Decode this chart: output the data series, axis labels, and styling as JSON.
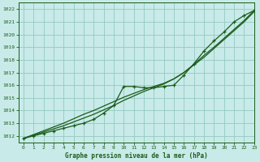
{
  "title": "Graphe pression niveau de la mer (hPa)",
  "xlabel": "Graphe pression niveau de la mer (hPa)",
  "xlim": [
    -0.5,
    23
  ],
  "ylim": [
    1011.5,
    1022.5
  ],
  "yticks": [
    1012,
    1013,
    1014,
    1015,
    1016,
    1017,
    1018,
    1019,
    1020,
    1021,
    1022
  ],
  "xticks": [
    0,
    1,
    2,
    3,
    4,
    5,
    6,
    7,
    8,
    9,
    10,
    11,
    12,
    13,
    14,
    15,
    16,
    17,
    18,
    19,
    20,
    21,
    22,
    23
  ],
  "background_color": "#c8eae8",
  "grid_color": "#94c9c2",
  "line_color": "#1a5c1a",
  "hours": [
    0,
    1,
    2,
    3,
    4,
    5,
    6,
    7,
    8,
    9,
    10,
    11,
    12,
    13,
    14,
    15,
    16,
    17,
    18,
    19,
    20,
    21,
    22,
    23
  ],
  "pressure_data": [
    1011.8,
    1012.0,
    1012.2,
    1012.4,
    1012.6,
    1012.8,
    1013.0,
    1013.3,
    1013.8,
    1014.4,
    1015.9,
    1015.9,
    1015.8,
    1015.8,
    1015.9,
    1016.0,
    1016.8,
    1017.7,
    1018.7,
    1019.5,
    1020.2,
    1021.0,
    1021.5,
    1021.9
  ],
  "pressure_smooth1": [
    1011.8,
    1012.05,
    1012.3,
    1012.55,
    1012.8,
    1013.1,
    1013.4,
    1013.7,
    1014.05,
    1014.4,
    1014.8,
    1015.15,
    1015.5,
    1015.8,
    1016.1,
    1016.5,
    1017.0,
    1017.6,
    1018.2,
    1018.9,
    1019.6,
    1020.3,
    1021.0,
    1021.8
  ],
  "pressure_smooth2": [
    1011.8,
    1012.1,
    1012.4,
    1012.7,
    1013.0,
    1013.35,
    1013.7,
    1014.0,
    1014.35,
    1014.7,
    1015.05,
    1015.35,
    1015.65,
    1015.9,
    1016.15,
    1016.5,
    1017.0,
    1017.65,
    1018.35,
    1019.0,
    1019.7,
    1020.4,
    1021.1,
    1021.9
  ]
}
